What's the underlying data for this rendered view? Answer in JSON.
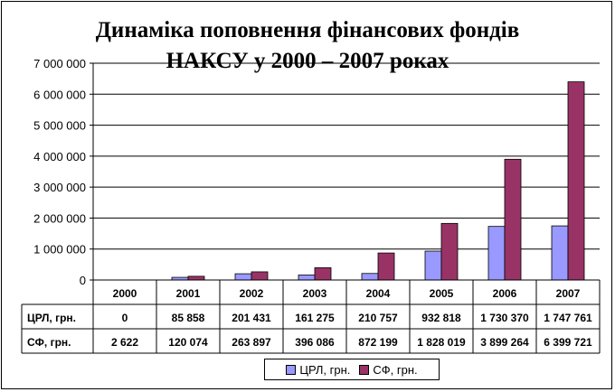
{
  "chart_data": {
    "type": "bar",
    "title": [
      "Динаміка поповнення фінансових фондів",
      "НАКСУ у 2000 – 2007 роках"
    ],
    "categories": [
      "2000",
      "2001",
      "2002",
      "2003",
      "2004",
      "2005",
      "2006",
      "2007"
    ],
    "series": [
      {
        "name": "ЦРЛ, грн.",
        "color": "#9999ff",
        "values": [
          0,
          85858,
          201431,
          161275,
          210757,
          932818,
          1730370,
          1747761
        ],
        "labels": [
          "0",
          "85 858",
          "201 431",
          "161 275",
          "210 757",
          "932 818",
          "1 730 370",
          "1 747 761"
        ]
      },
      {
        "name": "СФ, грн.",
        "color": "#993366",
        "values": [
          2622,
          120074,
          263897,
          396086,
          872199,
          1828019,
          3899264,
          6399721
        ],
        "labels": [
          "2 622",
          "120 074",
          "263 897",
          "396 086",
          "872 199",
          "1 828 019",
          "3 899 264",
          "6 399 721"
        ]
      }
    ],
    "ylim": [
      0,
      7000000
    ],
    "yticks": [
      0,
      1000000,
      2000000,
      3000000,
      4000000,
      5000000,
      6000000,
      7000000
    ],
    "ytick_labels": [
      "0",
      "1 000 000",
      "2 000 000",
      "3 000 000",
      "4 000 000",
      "5 000 000",
      "6 000 000",
      "7 000 000"
    ],
    "grid": true,
    "legend": "bottom",
    "data_table": true
  }
}
